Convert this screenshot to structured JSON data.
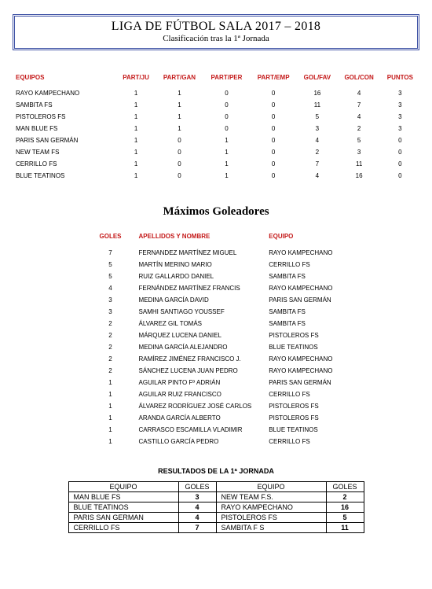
{
  "header": {
    "title": "LIGA DE FÚTBOL SALA 2017 – 2018",
    "subtitle": "Clasificación tras la 1ª Jornada"
  },
  "standings": {
    "columns": [
      "EQUIPOS",
      "PART/JU",
      "PART/GAN",
      "PART/PER",
      "PART/EMP",
      "GOL/FAV",
      "GOL/CON",
      "PUNTOS"
    ],
    "rows": [
      [
        "RAYO KAMPECHANO",
        "1",
        "1",
        "0",
        "0",
        "16",
        "4",
        "3"
      ],
      [
        "SAMBITA FS",
        "1",
        "1",
        "0",
        "0",
        "11",
        "7",
        "3"
      ],
      [
        "PISTOLEROS FS",
        "1",
        "1",
        "0",
        "0",
        "5",
        "4",
        "3"
      ],
      [
        "MAN BLUE FS",
        "1",
        "1",
        "0",
        "0",
        "3",
        "2",
        "3"
      ],
      [
        "PARIS SAN GERMÁN",
        "1",
        "0",
        "1",
        "0",
        "4",
        "5",
        "0"
      ],
      [
        "NEW TEAM FS",
        "1",
        "0",
        "1",
        "0",
        "2",
        "3",
        "0"
      ],
      [
        "CERRILLO  FS",
        "1",
        "0",
        "1",
        "0",
        "7",
        "11",
        "0"
      ],
      [
        "BLUE TEATINOS",
        "1",
        "0",
        "1",
        "0",
        "4",
        "16",
        "0"
      ]
    ]
  },
  "scorers": {
    "title": "Máximos Goleadores",
    "columns": [
      "GOLES",
      "APELLIDOS Y NOMBRE",
      "EQUIPO"
    ],
    "rows": [
      [
        "7",
        "FERNANDEZ MARTÍNEZ MIGUEL",
        "RAYO KAMPECHANO"
      ],
      [
        "5",
        "MARTÍN MERINO MARIO",
        "CERRILLO FS"
      ],
      [
        "5",
        "RUIZ GALLARDO DANIEL",
        "SAMBITA FS"
      ],
      [
        "4",
        "FERNÁNDEZ MARTÍNEZ FRANCIS",
        "RAYO KAMPECHANO"
      ],
      [
        "3",
        "MEDINA GARCÍA DAVID",
        "PARIS SAN GERMÁN"
      ],
      [
        "3",
        "SAMHI SANTIAGO YOUSSEF",
        "SAMBITA FS"
      ],
      [
        "2",
        "ÁLVAREZ GIL TOMÁS",
        "SAMBITA FS"
      ],
      [
        "2",
        "MÁRQUEZ LUCENA DANIEL",
        "PISTOLEROS FS"
      ],
      [
        "2",
        "MEDINA GARCÍA ALEJANDRO",
        "BLUE TEATINOS"
      ],
      [
        "2",
        "RAMÍREZ JIMÉNEZ FRANCISCO J.",
        "RAYO KAMPECHANO"
      ],
      [
        "2",
        "SÁNCHEZ LUCENA JUAN PEDRO",
        "RAYO KAMPECHANO"
      ],
      [
        "1",
        "AGUILAR PINTO  Fº ADRIÁN",
        "PARIS SAN GERMÁN"
      ],
      [
        "1",
        "AGUILAR RUIZ FRANCISCO",
        "CERRILLO FS"
      ],
      [
        "1",
        "ÁLVAREZ RODRÍGUEZ JOSÉ CARLOS",
        "PISTOLEROS FS"
      ],
      [
        "1",
        "ARANDA GARCÍA ALBERTO",
        "PISTOLEROS FS"
      ],
      [
        "1",
        "CARRASCO ESCAMILLA VLADIMIR",
        "BLUE TEATINOS"
      ],
      [
        "1",
        "CASTILLO GARCÍA PEDRO",
        "CERRILLO FS"
      ]
    ]
  },
  "results": {
    "title": "RESULTADOS DE LA 1ª JORNADA",
    "columns": [
      "EQUIPO",
      "GOLES",
      "EQUIPO",
      "GOLES"
    ],
    "rows": [
      [
        "MAN BLUE FS",
        "3",
        "NEW TEAM F.S.",
        "2"
      ],
      [
        "BLUE TEATINOS",
        "4",
        "RAYO KAMPECHANO",
        "16"
      ],
      [
        "PARIS SAN GERMAN",
        "4",
        "PISTOLEROS FS",
        "5"
      ],
      [
        "CERRILLO FS",
        "7",
        "SAMBITA F S",
        "11"
      ]
    ]
  }
}
